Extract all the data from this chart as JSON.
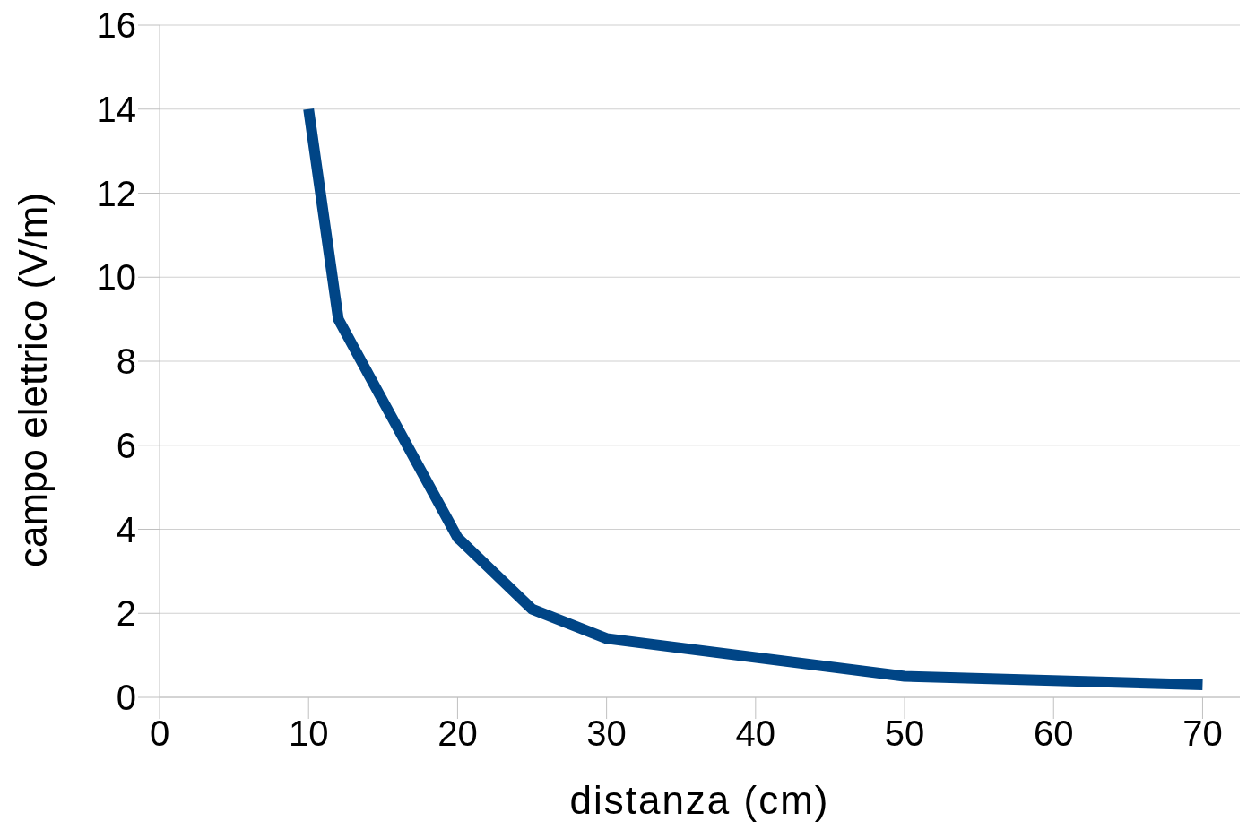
{
  "chart_data": {
    "type": "line",
    "xlabel": "distanza (cm)",
    "ylabel": "campo elettrico (V/m)",
    "x": [
      10,
      12,
      16,
      20,
      25,
      30,
      50,
      70
    ],
    "series": [
      {
        "color": "#004586",
        "values": [
          14,
          9,
          6.4,
          3.8,
          2.1,
          1.4,
          0.5,
          0.3
        ]
      }
    ],
    "xlim": [
      0,
      72.5
    ],
    "xticks": [
      0,
      10,
      20,
      30,
      40,
      50,
      60,
      70
    ],
    "ylim": [
      0,
      16
    ],
    "yticks": [
      0,
      2,
      4,
      6,
      8,
      10,
      12,
      14,
      16
    ],
    "grid": "y",
    "marker": "none",
    "line_style": "solid",
    "legend": false
  }
}
